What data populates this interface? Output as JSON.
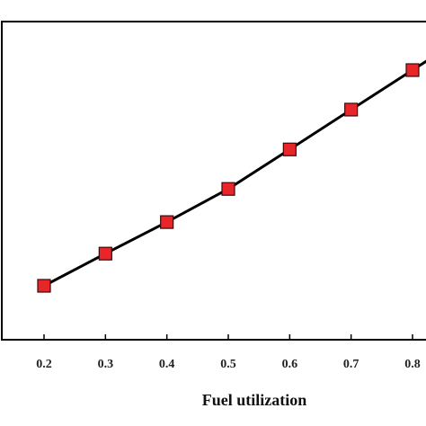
{
  "chart_data": {
    "type": "line",
    "xlabel": "Fuel utilization",
    "ylabel": "",
    "title": "",
    "x_ticks": [
      "0.2",
      "0.3",
      "0.4",
      "0.5",
      "0.6",
      "0.7",
      "0.8"
    ],
    "xlim": [
      0.2,
      0.8
    ],
    "series": [
      {
        "x": [
          0.2,
          0.3,
          0.4,
          0.5,
          0.6,
          0.7,
          0.8
        ],
        "y": [
          0.0,
          0.101,
          0.2,
          0.304,
          0.428,
          0.553,
          0.677
        ]
      }
    ],
    "marker": "square",
    "marker_color": "#e8262a",
    "line_color": "#000000",
    "grid": false
  }
}
